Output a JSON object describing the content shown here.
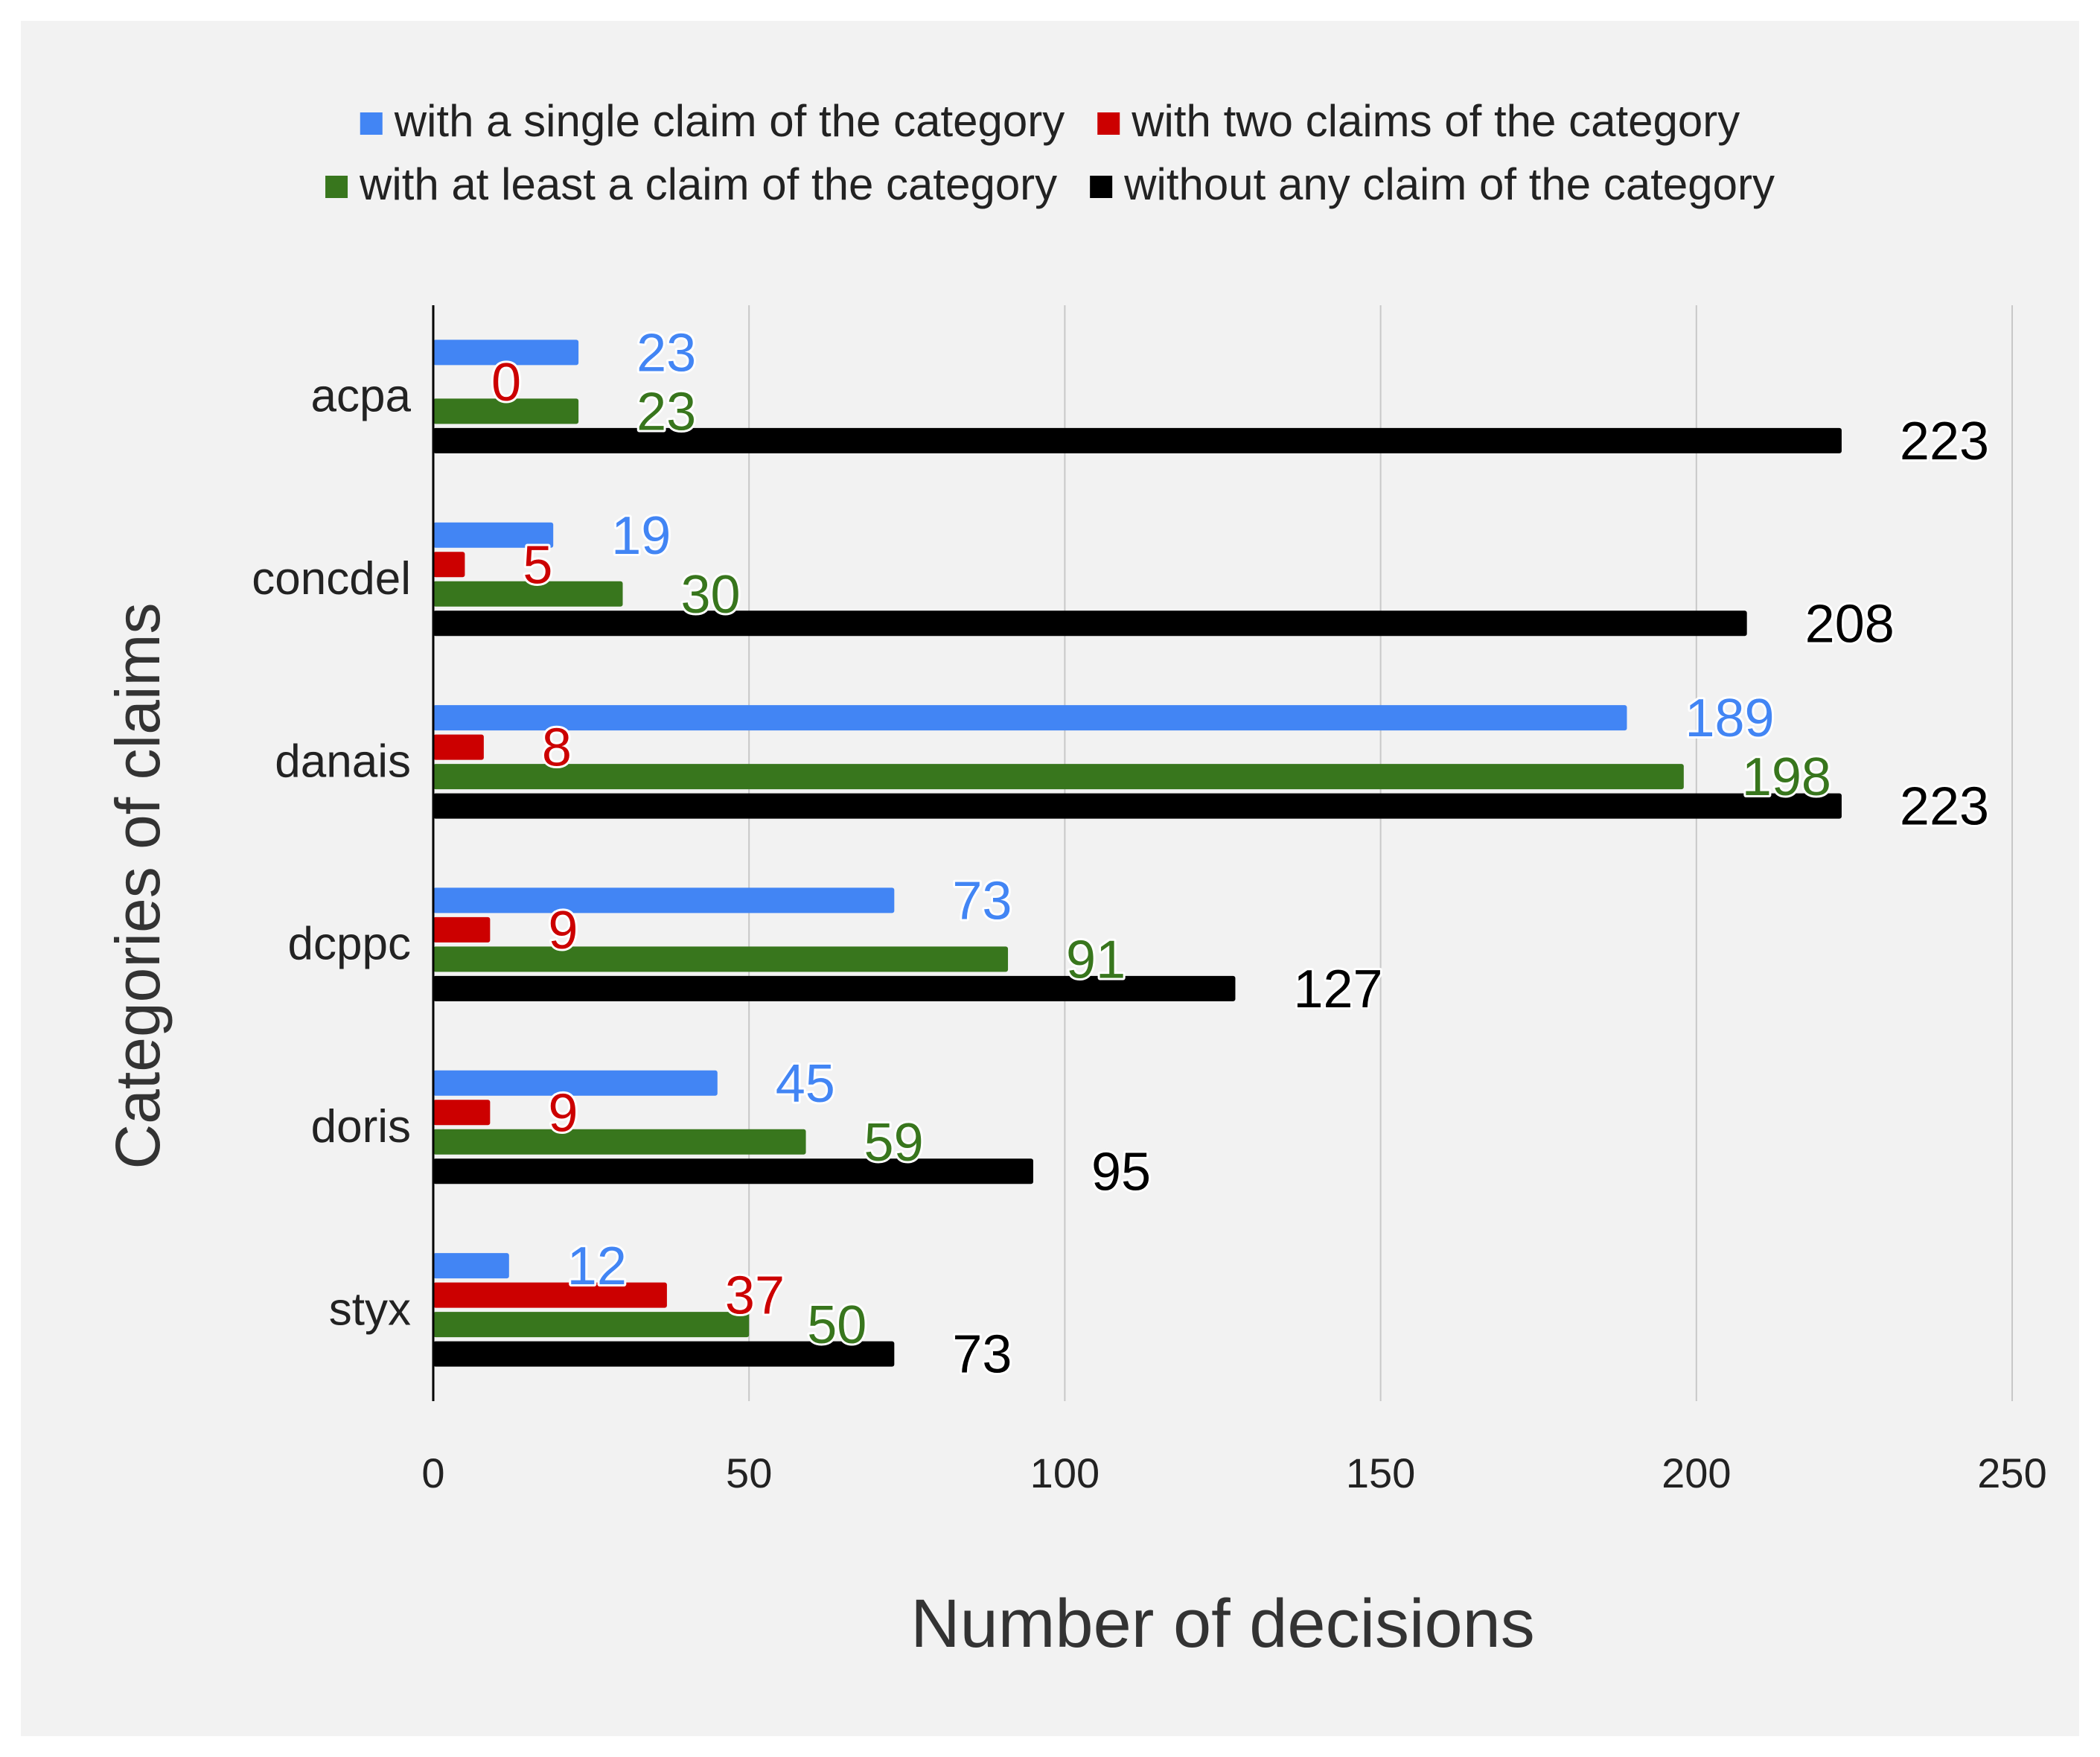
{
  "chart_data": {
    "type": "bar",
    "orientation": "horizontal",
    "title": "",
    "xlabel": "Number of decisions",
    "ylabel": "Categories of claims",
    "xlim": [
      0,
      250
    ],
    "xticks": [
      0,
      50,
      100,
      150,
      200,
      250
    ],
    "grid": "vertical",
    "legend_position": "top",
    "categories": [
      "acpa",
      "concdel",
      "danais",
      "dcppc",
      "doris",
      "styx"
    ],
    "series": [
      {
        "name": "with a single claim of the category",
        "color": "#4285f4",
        "values": [
          23,
          19,
          189,
          73,
          45,
          12
        ]
      },
      {
        "name": "with two claims of the category",
        "color": "#cc0000",
        "values": [
          0,
          5,
          8,
          9,
          9,
          37
        ]
      },
      {
        "name": "with at least a claim of the category",
        "color": "#38761d",
        "values": [
          23,
          30,
          198,
          91,
          59,
          50
        ]
      },
      {
        "name": "without any claim of the category",
        "color": "#000000",
        "values": [
          223,
          208,
          223,
          127,
          95,
          73
        ]
      }
    ]
  }
}
